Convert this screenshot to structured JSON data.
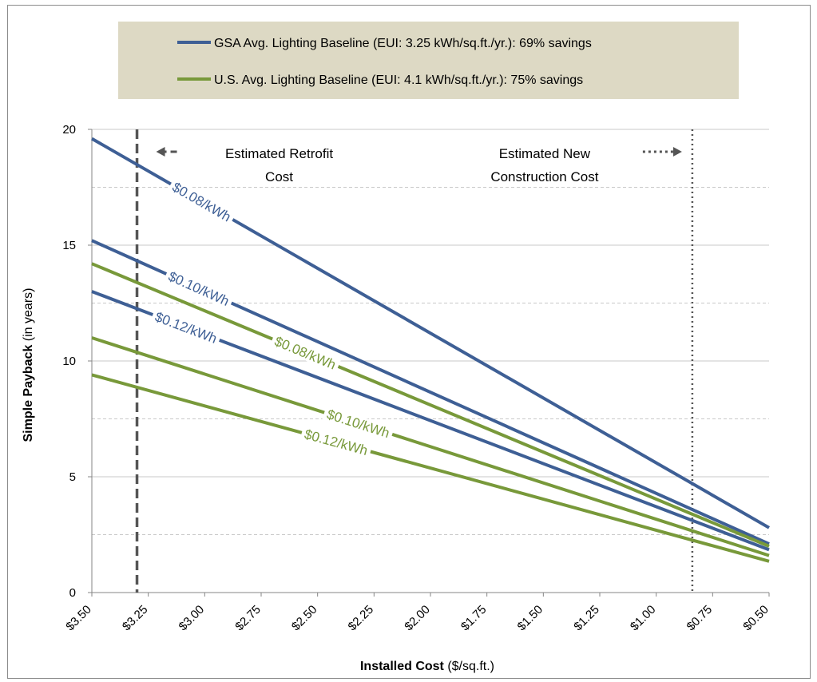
{
  "chart_data": {
    "type": "line",
    "xlabel": "Installed Cost",
    "xlabel_unit": "($/sq.ft.)",
    "ylabel": "Simple Payback",
    "ylabel_unit": "(in years)",
    "x_reversed": true,
    "xlim": [
      3.5,
      0.5
    ],
    "ylim": [
      0,
      20
    ],
    "y_ticks": [
      0,
      5,
      10,
      15,
      20
    ],
    "x_ticks": [
      {
        "value": 3.5,
        "label": "$3.50"
      },
      {
        "value": 3.25,
        "label": "$3.25"
      },
      {
        "value": 3.0,
        "label": "$3.00"
      },
      {
        "value": 2.75,
        "label": "$2.75"
      },
      {
        "value": 2.5,
        "label": "$2.50"
      },
      {
        "value": 2.25,
        "label": "$2.25"
      },
      {
        "value": 2.0,
        "label": "$2.00"
      },
      {
        "value": 1.75,
        "label": "$1.75"
      },
      {
        "value": 1.5,
        "label": "$1.50"
      },
      {
        "value": 1.25,
        "label": "$1.25"
      },
      {
        "value": 1.0,
        "label": "$1.00"
      },
      {
        "value": 0.75,
        "label": "$0.75"
      },
      {
        "value": 0.5,
        "label": "$0.50"
      }
    ],
    "grid": "horizontal dashed",
    "legend_position": "top",
    "colors": {
      "gsa": "#3e5f95",
      "us": "#78993a"
    },
    "legend": [
      {
        "text": "GSA Avg. Lighting Baseline (EUI: 3.25 kWh/sq.ft./yr.): 69% savings",
        "color": "#3e5f95"
      },
      {
        "text": "U.S. Avg. Lighting Baseline (EUI: 4.1 kWh/sq.ft./yr.): 75% savings",
        "color": "#78993a"
      }
    ],
    "series": [
      {
        "group": "GSA",
        "label": "$0.08/kWh",
        "color": "#3e5f95",
        "x": [
          3.5,
          0.5
        ],
        "y": [
          19.6,
          2.8
        ],
        "label_x": 3.15
      },
      {
        "group": "GSA",
        "label": "$0.10/kWh",
        "color": "#3e5f95",
        "x": [
          3.5,
          0.5
        ],
        "y": [
          15.2,
          2.1
        ],
        "label_x": 3.17
      },
      {
        "group": "GSA",
        "label": "$0.12/kWh",
        "color": "#3e5f95",
        "x": [
          3.5,
          0.5
        ],
        "y": [
          13.0,
          1.85
        ],
        "label_x": 3.23
      },
      {
        "group": "US",
        "label": "$0.08/kWh",
        "color": "#78993a",
        "x": [
          3.5,
          0.5
        ],
        "y": [
          14.2,
          2.0
        ],
        "label_x": 2.7
      },
      {
        "group": "US",
        "label": "$0.10/kWh",
        "color": "#78993a",
        "x": [
          3.5,
          0.5
        ],
        "y": [
          11.0,
          1.6
        ],
        "label_x": 2.47
      },
      {
        "group": "US",
        "label": "$0.12/kWh",
        "color": "#78993a",
        "x": [
          3.5,
          0.5
        ],
        "y": [
          9.4,
          1.35
        ],
        "label_x": 2.57
      }
    ],
    "reference_lines": [
      {
        "x": 3.3,
        "style": "dashed",
        "direction": "left",
        "text": [
          "Estimated Retrofit",
          "Cost"
        ]
      },
      {
        "x": 0.84,
        "style": "dotted",
        "direction": "right",
        "text": [
          "Estimated New",
          "Construction Cost"
        ]
      }
    ]
  }
}
